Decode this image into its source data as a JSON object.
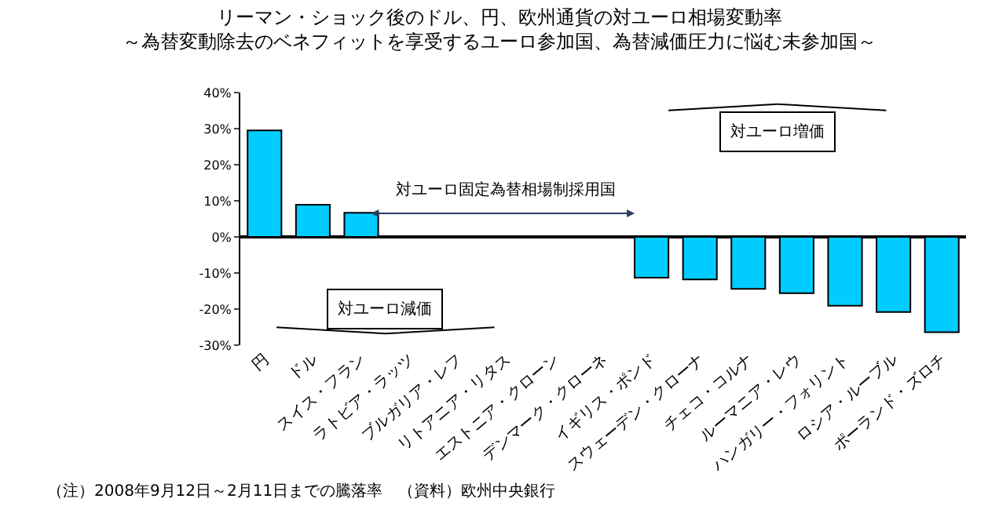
{
  "chart_data": {
    "type": "bar",
    "title": "リーマン・ショック後のドル、円、欧州通貨の対ユーロ相場変動率",
    "subtitle": "～為替変動除去のベネフィットを享受するユーロ参加国、為替減価圧力に悩む未参加国～",
    "categories": [
      "円",
      "ドル",
      "スイス・フラン",
      "ラトビア・ラッツ",
      "ブルガリア・レフ",
      "リトアニア・リタス",
      "エストニア・クローン",
      "デンマーク・クローネ",
      "イギリス・ポンド",
      "スウェーデン・クローナ",
      "チェコ・コルナ",
      "ルーマニア・レウ",
      "ハンガリー・フォリント",
      "ロシア・ルーブル",
      "ポーランド・ズロチ"
    ],
    "values": [
      29.5,
      8.9,
      6.7,
      0,
      0,
      0,
      0,
      0,
      -11.3,
      -11.8,
      -14.4,
      -15.6,
      -19.1,
      -20.8,
      -26.4
    ],
    "color": "#00ccff",
    "ylim": [
      -30,
      40
    ],
    "yticks": [
      {
        "value": 40,
        "label": "40%"
      },
      {
        "value": 30,
        "label": "30%"
      },
      {
        "value": 20,
        "label": "20%"
      },
      {
        "value": 10,
        "label": "10%"
      },
      {
        "value": 0,
        "label": "0%"
      },
      {
        "value": -10,
        "label": "-10%"
      },
      {
        "value": -20,
        "label": "-20%"
      },
      {
        "value": -30,
        "label": "-30%"
      }
    ],
    "annotations": [
      "対ユーロ固定為替相場制採用国",
      "対ユーロ増価",
      "対ユーロ減価",
      "（注）2008年9月12日～2月11日までの騰落率　（資料）欧州中央銀行"
    ]
  }
}
